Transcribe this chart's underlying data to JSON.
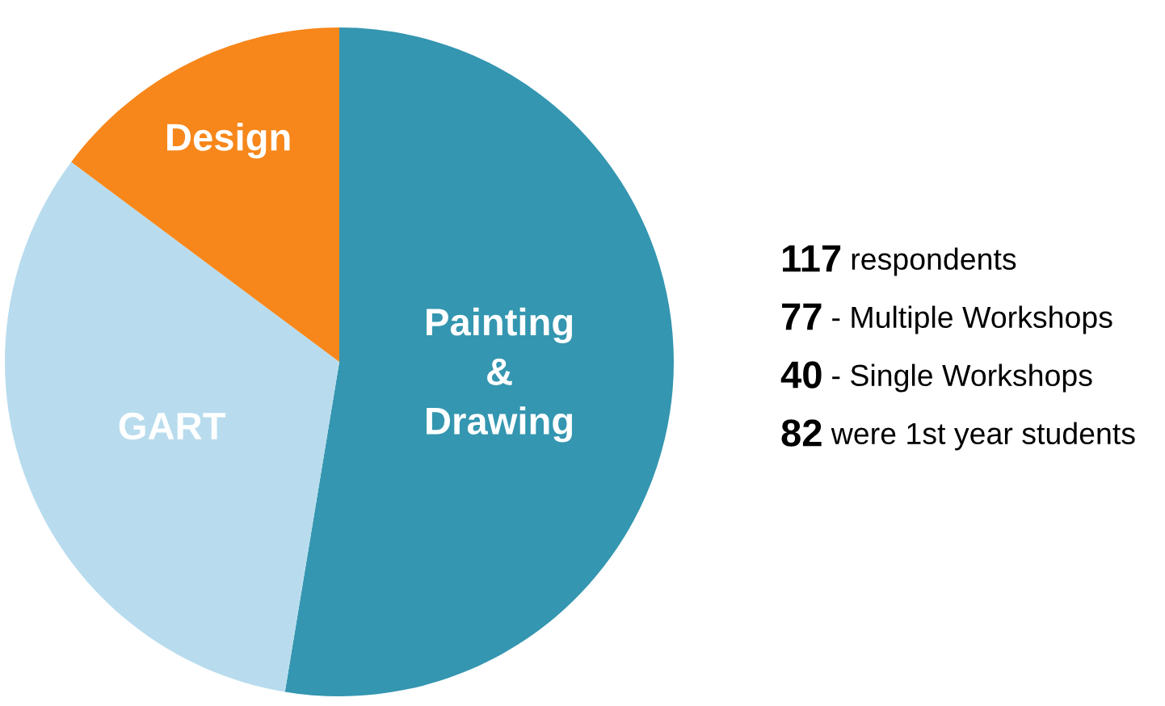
{
  "chart_data": {
    "type": "pie",
    "categories": [
      "Painting\n&\nDrawing",
      "GART",
      "Design"
    ],
    "values": [
      52.6,
      32.6,
      14.8
    ],
    "colors": [
      "#3496b0",
      "#b8dcee",
      "#f7871b"
    ],
    "annotations": [
      "117 respondents",
      "77 - Multiple Workshops",
      "40 - Single Workshops",
      "82 were 1st year students"
    ]
  }
}
